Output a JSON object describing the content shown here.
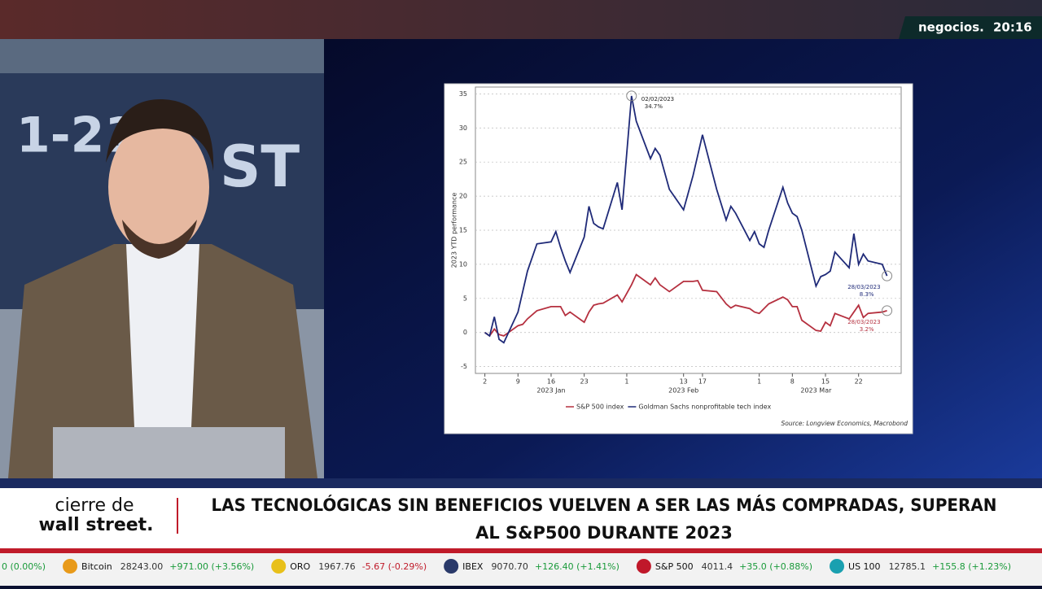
{
  "header": {
    "brand": "negocios.",
    "time": "20:16"
  },
  "chart_data": {
    "type": "line",
    "y_label": "2023 YTD performance",
    "x": [
      "2023-01-02",
      "2023-01-03",
      "2023-01-04",
      "2023-01-05",
      "2023-01-06",
      "2023-01-09",
      "2023-01-10",
      "2023-01-11",
      "2023-01-13",
      "2023-01-16",
      "2023-01-17",
      "2023-01-18",
      "2023-01-19",
      "2023-01-20",
      "2023-01-23",
      "2023-01-24",
      "2023-01-25",
      "2023-01-26",
      "2023-01-27",
      "2023-01-30",
      "2023-01-31",
      "2023-02-02",
      "2023-02-03",
      "2023-02-06",
      "2023-02-07",
      "2023-02-08",
      "2023-02-10",
      "2023-02-13",
      "2023-02-15",
      "2023-02-16",
      "2023-02-17",
      "2023-02-20",
      "2023-02-22",
      "2023-02-23",
      "2023-02-24",
      "2023-02-27",
      "2023-02-28",
      "2023-03-01",
      "2023-03-02",
      "2023-03-03",
      "2023-03-06",
      "2023-03-07",
      "2023-03-08",
      "2023-03-09",
      "2023-03-10",
      "2023-03-13",
      "2023-03-14",
      "2023-03-15",
      "2023-03-16",
      "2023-03-17",
      "2023-03-20",
      "2023-03-21",
      "2023-03-22",
      "2023-03-23",
      "2023-03-24",
      "2023-03-27",
      "2023-03-28"
    ],
    "series": [
      {
        "name": "S&P 500 index",
        "color": "#b5303f",
        "values": [
          0,
          -0.5,
          0.5,
          -0.3,
          -0.5,
          1,
          1.2,
          2,
          3.2,
          3.8,
          3.8,
          3.8,
          2.5,
          3,
          1.5,
          3,
          4,
          4.2,
          4.3,
          5.5,
          4.5,
          7,
          8.5,
          7,
          8,
          7,
          6,
          7.5,
          7.5,
          7.6,
          6.2,
          6,
          4.2,
          3.6,
          4,
          3.5,
          3,
          2.8,
          3.5,
          4.2,
          5.2,
          4.8,
          3.8,
          3.8,
          1.8,
          0.3,
          0.2,
          1.5,
          1,
          2.8,
          2,
          3,
          4,
          2.2,
          2.8,
          3,
          3.2
        ],
        "value_labels": [
          null,
          null,
          null,
          null,
          null,
          null,
          null,
          null,
          null,
          null,
          null,
          null,
          null,
          null,
          null,
          null,
          null,
          null,
          null,
          null,
          null,
          null,
          null,
          null,
          null,
          null,
          null,
          null,
          null,
          null,
          null,
          null,
          null,
          null,
          null,
          null,
          null,
          null,
          null,
          null,
          null,
          null,
          null,
          null,
          null,
          null,
          null,
          null,
          null,
          null,
          null,
          null,
          null,
          null,
          null,
          null,
          "3.2%"
        ],
        "date_labels": [
          null,
          null,
          null,
          null,
          null,
          null,
          null,
          null,
          null,
          null,
          null,
          null,
          null,
          null,
          null,
          null,
          null,
          null,
          null,
          null,
          null,
          null,
          null,
          null,
          null,
          null,
          null,
          null,
          null,
          null,
          null,
          null,
          null,
          null,
          null,
          null,
          null,
          null,
          null,
          null,
          null,
          null,
          null,
          null,
          null,
          null,
          null,
          null,
          null,
          null,
          null,
          null,
          null,
          null,
          null,
          null,
          "28/03/2023"
        ]
      },
      {
        "name": "Goldman Sachs nonprofitable tech index",
        "color": "#1f2a78",
        "values": [
          0,
          -0.5,
          2.3,
          -1,
          -1.5,
          3,
          6,
          9,
          13,
          13.3,
          14.8,
          12.5,
          10.5,
          8.8,
          14,
          18.5,
          16,
          15.5,
          15.2,
          22,
          18,
          34.7,
          31,
          25.5,
          27,
          26,
          21,
          18,
          23,
          26,
          29,
          21,
          16.5,
          18.5,
          17.5,
          13.5,
          14.8,
          13,
          12.5,
          15,
          21.3,
          19,
          17.5,
          17,
          15,
          6.8,
          8.2,
          8.5,
          9,
          11.8,
          9.5,
          14.5,
          10,
          11.5,
          10.5,
          10,
          8.3
        ],
        "value_labels": [
          null,
          null,
          null,
          null,
          null,
          null,
          null,
          null,
          null,
          null,
          null,
          null,
          null,
          null,
          null,
          null,
          null,
          null,
          null,
          null,
          null,
          "34.7%",
          null,
          null,
          null,
          null,
          null,
          null,
          null,
          null,
          null,
          null,
          null,
          null,
          null,
          null,
          null,
          null,
          null,
          null,
          null,
          null,
          null,
          null,
          null,
          null,
          null,
          null,
          null,
          null,
          null,
          null,
          null,
          null,
          null,
          null,
          "8.3%"
        ],
        "date_labels": [
          null,
          null,
          null,
          null,
          null,
          null,
          null,
          null,
          null,
          null,
          null,
          null,
          null,
          null,
          null,
          null,
          null,
          null,
          null,
          null,
          null,
          "02/02/2023",
          null,
          null,
          null,
          null,
          null,
          null,
          null,
          null,
          null,
          null,
          null,
          null,
          null,
          null,
          null,
          null,
          null,
          null,
          null,
          null,
          null,
          null,
          null,
          null,
          null,
          null,
          null,
          null,
          null,
          null,
          null,
          null,
          null,
          null,
          "28/03/2023"
        ]
      }
    ],
    "xlim": [
      "2022-12-31",
      "2023-03-31"
    ],
    "xticks": [
      {
        "value": "2023-01-02",
        "label": "2"
      },
      {
        "value": "2023-01-09",
        "label": "9"
      },
      {
        "value": "2023-01-16",
        "label": "16"
      },
      {
        "value": "2023-01-23",
        "label": "23"
      },
      {
        "value": "2023-02-01",
        "label": "1"
      },
      {
        "value": "2023-02-13",
        "label": "13"
      },
      {
        "value": "2023-02-17",
        "label": "17"
      },
      {
        "value": "2023-03-01",
        "label": "1"
      },
      {
        "value": "2023-03-08",
        "label": "8"
      },
      {
        "value": "2023-03-15",
        "label": "15"
      },
      {
        "value": "2023-03-22",
        "label": "22"
      }
    ],
    "x_groups": [
      {
        "value": "2023-01-16",
        "label": "2023 Jan"
      },
      {
        "value": "2023-02-13",
        "label": "2023 Feb"
      },
      {
        "value": "2023-03-13",
        "label": "2023 Mar"
      }
    ],
    "ylim": [
      -6,
      36
    ],
    "yticks": [
      -5,
      0,
      5,
      10,
      15,
      20,
      25,
      30,
      35
    ],
    "grid": true,
    "source": "Source: Longview Economics, Macrobond"
  },
  "lower_third": {
    "show": [
      "cierre de",
      "wall street."
    ],
    "headline": [
      "LAS TECNOLÓGICAS SIN BENEFICIOS VUELVEN A SER LAS MÁS COMPRADAS, SUPERAN",
      "AL S&P500 DURANTE 2023"
    ]
  },
  "ticker": {
    "items": [
      {
        "change": "0 (0.00%)"
      },
      {
        "name": "Bitcoin",
        "price": "28243.00",
        "change": "+971.00 (+3.56%)"
      },
      {
        "name": "ORO",
        "price": "1967.76",
        "change": "-5.67 (-0.29%)"
      },
      {
        "name": "IBEX",
        "price": "9070.70",
        "change": "+126.40 (+1.41%)"
      },
      {
        "name": "S&P 500",
        "price": "4011.4",
        "change": "+35.0 (+0.88%)"
      },
      {
        "name": "US 100",
        "price": "12785.1",
        "change": "+155.8 (+1.23%)"
      }
    ]
  }
}
